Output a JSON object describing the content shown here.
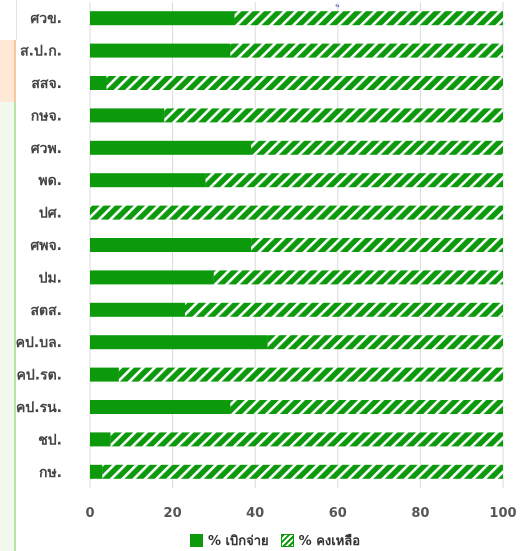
{
  "chart_data": {
    "type": "bar",
    "orientation": "horizontal",
    "stacked": true,
    "categories": [
      "ศวข.",
      "ส.ป.ก.",
      "สสจ.",
      "กษจ.",
      "ศวพ.",
      "พด.",
      "ปศ.",
      "ศพจ.",
      "ปม.",
      "สตส.",
      "คป.บล.",
      "คป.รต.",
      "คป.รน.",
      "ชป.",
      "กษ."
    ],
    "series": [
      {
        "name": "% เบิกจ่าย",
        "values": [
          35,
          34,
          4,
          18,
          39,
          28,
          0,
          39,
          30,
          23,
          43,
          7,
          34,
          5,
          3
        ]
      },
      {
        "name": "% คงเหลือ",
        "values": [
          65,
          66,
          96,
          82,
          61,
          72,
          100,
          61,
          70,
          77,
          57,
          93,
          66,
          95,
          97
        ]
      }
    ],
    "x_ticks": [
      "0",
      "20",
      "40",
      "60",
      "80",
      "100"
    ],
    "xlim": [
      0,
      100
    ],
    "grid": true,
    "legend_position": "bottom",
    "colors": {
      "spent": "#0c9a0c",
      "hatch": "#0c9a0c",
      "grid": "#d9d9d9",
      "axis_text": "#555555",
      "label_text": "#444444"
    }
  },
  "legend": {
    "spent_label": "% เบิกจ่าย",
    "remaining_label": "% คงเหลือ"
  },
  "top_clip_text": "ู"
}
